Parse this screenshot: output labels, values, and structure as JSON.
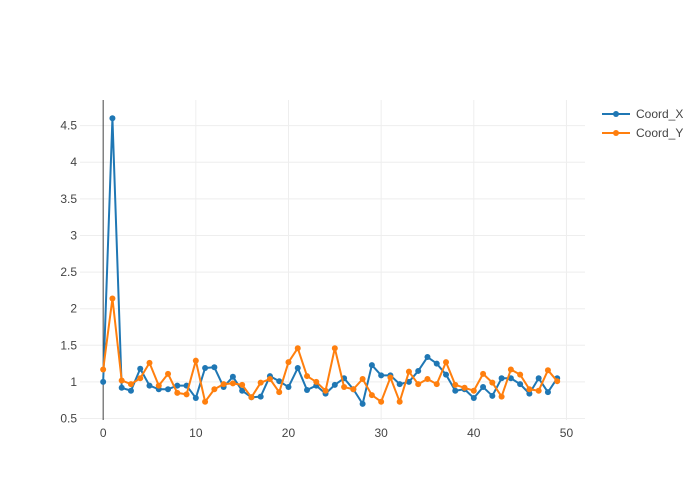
{
  "chart_data": {
    "type": "line",
    "title": "",
    "xlabel": "",
    "ylabel": "",
    "xlim": [
      -2.5,
      52
    ],
    "ylim": [
      0.48,
      4.85
    ],
    "x_ticks": [
      0,
      10,
      20,
      30,
      40,
      50
    ],
    "y_ticks": [
      0.5,
      1,
      1.5,
      2,
      2.5,
      3,
      3.5,
      4,
      4.5
    ],
    "x_tick_labels": [
      "0",
      "10",
      "20",
      "30",
      "40",
      "50"
    ],
    "y_tick_labels": [
      "0.5",
      "1",
      "1.5",
      "2",
      "2.5",
      "3",
      "3.5",
      "4",
      "4.5"
    ],
    "grid": true,
    "legend_position": "top-right",
    "x": [
      0,
      1,
      2,
      3,
      4,
      5,
      6,
      7,
      8,
      9,
      10,
      11,
      12,
      13,
      14,
      15,
      16,
      17,
      18,
      19,
      20,
      21,
      22,
      23,
      24,
      25,
      26,
      27,
      28,
      29,
      30,
      31,
      32,
      33,
      34,
      35,
      36,
      37,
      38,
      39,
      40,
      41,
      42,
      43,
      44,
      45,
      46,
      47,
      48,
      49
    ],
    "series": [
      {
        "name": "Coord_X",
        "color": "#1f77b4",
        "values": [
          1.0,
          4.6,
          0.92,
          0.88,
          1.18,
          0.95,
          0.9,
          0.9,
          0.95,
          0.95,
          0.78,
          1.19,
          1.2,
          0.93,
          1.07,
          0.88,
          0.79,
          0.8,
          1.08,
          1.01,
          0.93,
          1.19,
          0.89,
          0.95,
          0.84,
          0.96,
          1.05,
          0.9,
          0.7,
          1.23,
          1.09,
          1.09,
          0.97,
          1.0,
          1.15,
          1.34,
          1.25,
          1.1,
          0.88,
          0.9,
          0.78,
          0.93,
          0.81,
          1.05,
          1.05,
          0.97,
          0.84,
          1.05,
          0.86,
          1.05
        ]
      },
      {
        "name": "Coord_Y",
        "color": "#ff7f0e",
        "values": [
          1.17,
          2.14,
          1.02,
          0.97,
          1.05,
          1.26,
          0.95,
          1.11,
          0.85,
          0.83,
          1.29,
          0.73,
          0.9,
          0.97,
          0.98,
          0.96,
          0.79,
          0.99,
          1.04,
          0.86,
          1.27,
          1.46,
          1.08,
          1.0,
          0.88,
          1.46,
          0.93,
          0.9,
          1.04,
          0.82,
          0.73,
          1.06,
          0.73,
          1.14,
          0.97,
          1.04,
          0.97,
          1.27,
          0.96,
          0.92,
          0.88,
          1.11,
          0.99,
          0.8,
          1.17,
          1.1,
          0.9,
          0.88,
          1.16,
          1.01
        ]
      }
    ]
  }
}
